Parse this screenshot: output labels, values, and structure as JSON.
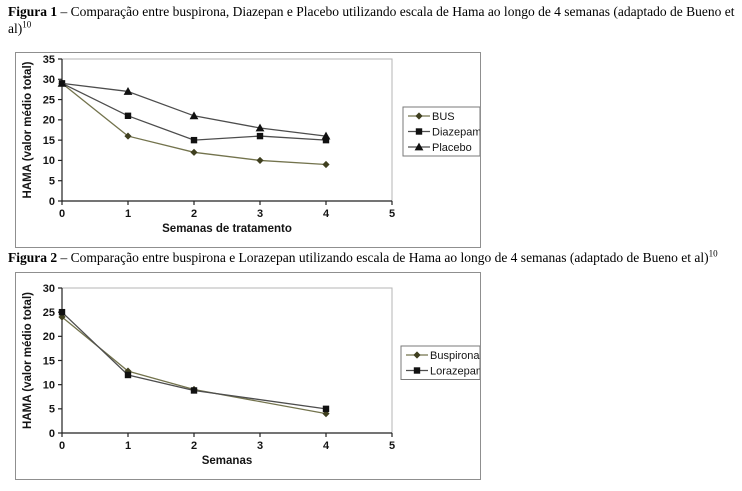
{
  "page": {
    "background": "#ffffff"
  },
  "figure1": {
    "caption_bold": "Figura 1",
    "caption_text": " – Comparação entre buspirona, Diazepan e Placebo utilizando escala de Hama ao longo de 4 semanas (adaptado de Bueno et al)",
    "caption_sup": "10"
  },
  "figure2": {
    "caption_bold": "Figura 2",
    "caption_text": " – Comparação entre buspirona e Lorazepan utilizando escala de Hama ao longo de 4 semanas (adaptado de Bueno et al)",
    "caption_sup": "10"
  },
  "colors": {
    "buspirone_line": "#73734d",
    "buspirone_marker": "#3f3f1f",
    "dark_line": "#4d4d4d",
    "dark_marker": "#111111",
    "axis": "#222222",
    "plot_border": "#b5b5b5",
    "box_border": "#8f8f8f",
    "legend_border": "#7a7a7a"
  },
  "chart_data": [
    {
      "type": "line",
      "title": "",
      "xlabel": "Semanas de tratamento",
      "ylabel": "HAMA (valor médio total)",
      "x": [
        0,
        1,
        2,
        3,
        4
      ],
      "xlim": [
        0,
        5
      ],
      "ylim": [
        0,
        35
      ],
      "xticks": [
        0,
        1,
        2,
        3,
        4,
        5
      ],
      "yticks": [
        0,
        5,
        10,
        15,
        20,
        25,
        30,
        35
      ],
      "grid": false,
      "legend_position": "right",
      "series": [
        {
          "name": "BUS",
          "marker": "diamond",
          "line_color": "#73734d",
          "marker_color": "#3f3f1f",
          "values": [
            29,
            16,
            12,
            10,
            9
          ]
        },
        {
          "name": "Diazepam",
          "marker": "square",
          "line_color": "#4d4d4d",
          "marker_color": "#111111",
          "values": [
            29,
            21,
            15,
            16,
            15
          ]
        },
        {
          "name": "Placebo",
          "marker": "triangle",
          "line_color": "#4d4d4d",
          "marker_color": "#111111",
          "values": [
            29,
            27,
            21,
            18,
            16
          ]
        }
      ]
    },
    {
      "type": "line",
      "title": "",
      "xlabel": "Semanas",
      "ylabel": "HAMA (valor médio total)",
      "x": [
        0,
        1,
        2,
        4
      ],
      "xlim": [
        0,
        5
      ],
      "ylim": [
        0,
        30
      ],
      "xticks": [
        0,
        1,
        2,
        3,
        4,
        5
      ],
      "yticks": [
        0,
        5,
        10,
        15,
        20,
        25,
        30
      ],
      "grid": false,
      "legend_position": "right",
      "series": [
        {
          "name": "Buspirona",
          "marker": "diamond",
          "line_color": "#73734d",
          "marker_color": "#3f3f1f",
          "values": [
            24,
            12.8,
            9,
            4
          ]
        },
        {
          "name": "Lorazepam",
          "marker": "square",
          "line_color": "#4d4d4d",
          "marker_color": "#111111",
          "values": [
            25,
            12,
            8.8,
            5
          ]
        }
      ]
    }
  ]
}
